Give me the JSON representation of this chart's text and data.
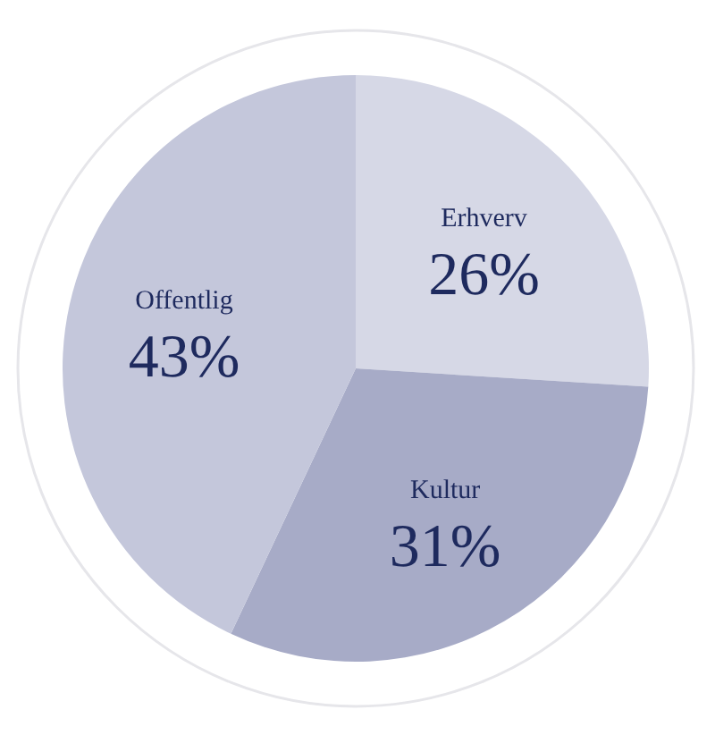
{
  "chart_data": {
    "type": "pie",
    "categories": [
      "Erhverv",
      "Kultur",
      "Offentlig"
    ],
    "values": [
      26,
      31,
      43
    ],
    "value_labels": [
      "26%",
      "31%",
      "43%"
    ],
    "colors": [
      "#d6d8e6",
      "#a7abc7",
      "#c4c7db"
    ],
    "legend": false
  }
}
